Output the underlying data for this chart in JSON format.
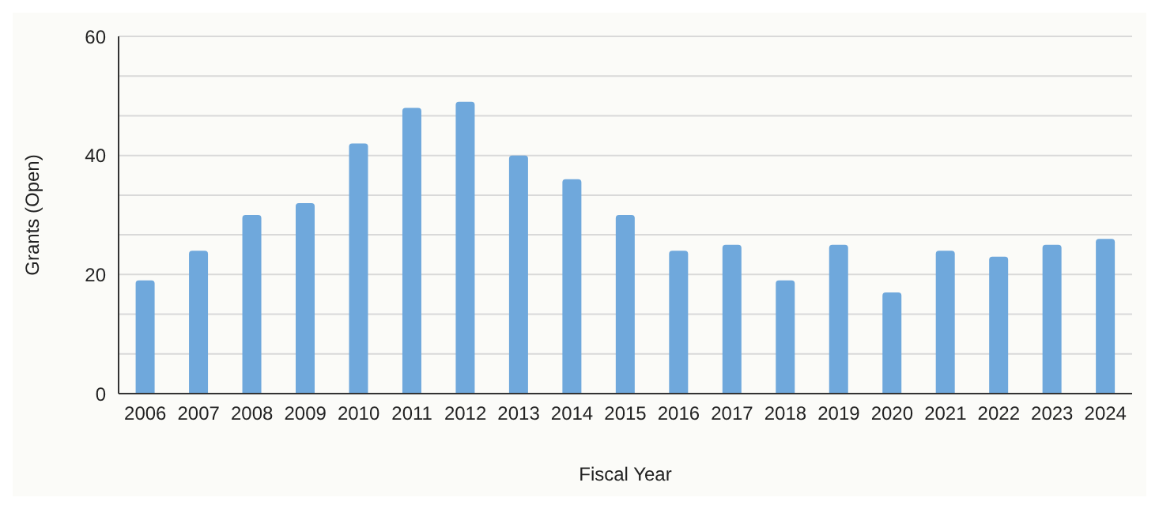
{
  "chart_data": {
    "type": "bar",
    "xlabel": "Fiscal Year",
    "ylabel": "Grants (Open)",
    "categories": [
      "2006",
      "2007",
      "2008",
      "2009",
      "2010",
      "2011",
      "2012",
      "2013",
      "2014",
      "2015",
      "2016",
      "2017",
      "2018",
      "2019",
      "2020",
      "2021",
      "2022",
      "2023",
      "2024"
    ],
    "values": [
      19,
      24,
      30,
      32,
      42,
      48,
      49,
      40,
      36,
      30,
      24,
      25,
      19,
      25,
      17,
      24,
      23,
      25,
      26
    ],
    "color": "#6fa8dc",
    "ylim": [
      0,
      60
    ],
    "yticks": [
      0,
      {
        "value": 6.667,
        "label": null
      },
      {
        "value": 13.333,
        "label": null
      },
      20,
      {
        "value": 26.667,
        "label": null
      },
      {
        "value": 33.333,
        "label": null
      },
      40,
      {
        "value": 46.667,
        "label": null
      },
      {
        "value": 53.333,
        "label": null
      },
      60
    ],
    "grid": "y"
  }
}
